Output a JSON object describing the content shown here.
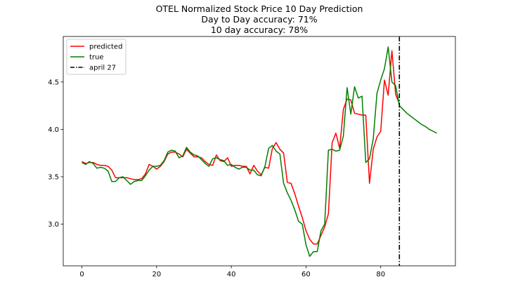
{
  "chart_data": {
    "type": "line",
    "title": "OTEL Normalized Stock Price 10 Day Prediction",
    "subtitle_lines": [
      "Day to Day accuracy: 71%",
      "10 day accuracy: 78%"
    ],
    "xlabel": "",
    "ylabel": "",
    "xlim": [
      -5,
      100
    ],
    "ylim": [
      2.56,
      4.98
    ],
    "xticks": [
      0,
      20,
      40,
      60,
      80
    ],
    "yticks": [
      3.0,
      3.5,
      4.0,
      4.5
    ],
    "ytick_labels": [
      "3.0",
      "3.5",
      "4.0",
      "4.5"
    ],
    "grid": false,
    "legend_position": "top-left",
    "series": [
      {
        "name": "predicted",
        "color": "#ff0000",
        "x": [
          0,
          1,
          2,
          3,
          4,
          5,
          6,
          7,
          8,
          9,
          10,
          11,
          12,
          13,
          14,
          15,
          16,
          17,
          18,
          19,
          20,
          21,
          22,
          23,
          24,
          25,
          26,
          27,
          28,
          29,
          30,
          31,
          32,
          33,
          34,
          35,
          36,
          37,
          38,
          39,
          40,
          41,
          42,
          43,
          44,
          45,
          46,
          47,
          48,
          49,
          50,
          51,
          52,
          53,
          54,
          55,
          56,
          57,
          58,
          59,
          60,
          61,
          62,
          63,
          64,
          65,
          66,
          67,
          68,
          69,
          70,
          71,
          72,
          73,
          74,
          75,
          76,
          77,
          78,
          79,
          80,
          81,
          82,
          83,
          84,
          85
        ],
        "values": [
          3.66,
          3.64,
          3.65,
          3.65,
          3.63,
          3.62,
          3.62,
          3.61,
          3.57,
          3.49,
          3.49,
          3.49,
          3.49,
          3.48,
          3.47,
          3.47,
          3.48,
          3.53,
          3.63,
          3.61,
          3.58,
          3.61,
          3.66,
          3.74,
          3.76,
          3.76,
          3.74,
          3.71,
          3.79,
          3.75,
          3.71,
          3.71,
          3.7,
          3.66,
          3.63,
          3.62,
          3.73,
          3.67,
          3.66,
          3.7,
          3.61,
          3.62,
          3.62,
          3.61,
          3.61,
          3.53,
          3.62,
          3.56,
          3.52,
          3.6,
          3.59,
          3.8,
          3.86,
          3.79,
          3.75,
          3.44,
          3.43,
          3.32,
          3.19,
          3.07,
          2.93,
          2.84,
          2.79,
          2.79,
          2.88,
          2.97,
          3.11,
          3.86,
          3.96,
          3.8,
          4.21,
          4.32,
          4.31,
          4.17,
          4.16,
          4.15,
          4.15,
          3.43,
          3.79,
          3.92,
          3.98,
          4.52,
          4.36,
          4.83,
          4.37,
          4.27
        ]
      },
      {
        "name": "true",
        "color": "#008000",
        "x": [
          0,
          1,
          2,
          3,
          4,
          5,
          6,
          7,
          8,
          9,
          10,
          11,
          12,
          13,
          14,
          15,
          16,
          17,
          18,
          19,
          20,
          21,
          22,
          23,
          24,
          25,
          26,
          27,
          28,
          29,
          30,
          31,
          32,
          33,
          34,
          35,
          36,
          37,
          38,
          39,
          40,
          41,
          42,
          43,
          44,
          45,
          46,
          47,
          48,
          49,
          50,
          51,
          52,
          53,
          54,
          55,
          56,
          57,
          58,
          59,
          60,
          61,
          62,
          63,
          64,
          65,
          66,
          67,
          68,
          69,
          70,
          71,
          72,
          73,
          74,
          75,
          76,
          77,
          78,
          79,
          80,
          81,
          82,
          83,
          84,
          85,
          86,
          87,
          88,
          89,
          90,
          91,
          92,
          93,
          94,
          95
        ],
        "values": [
          3.65,
          3.63,
          3.66,
          3.64,
          3.59,
          3.6,
          3.59,
          3.56,
          3.45,
          3.45,
          3.49,
          3.5,
          3.46,
          3.42,
          3.45,
          3.46,
          3.46,
          3.51,
          3.57,
          3.61,
          3.61,
          3.62,
          3.67,
          3.76,
          3.78,
          3.77,
          3.7,
          3.72,
          3.81,
          3.76,
          3.73,
          3.72,
          3.68,
          3.64,
          3.61,
          3.69,
          3.7,
          3.68,
          3.67,
          3.62,
          3.63,
          3.6,
          3.58,
          3.6,
          3.6,
          3.57,
          3.57,
          3.52,
          3.51,
          3.61,
          3.8,
          3.83,
          3.77,
          3.74,
          3.43,
          3.33,
          3.25,
          3.15,
          3.03,
          3.0,
          2.78,
          2.66,
          2.71,
          2.71,
          2.93,
          3.0,
          3.78,
          3.79,
          3.77,
          3.78,
          3.93,
          4.44,
          4.16,
          4.45,
          4.33,
          4.35,
          3.65,
          3.69,
          3.9,
          4.38,
          4.52,
          4.64,
          4.87,
          4.5,
          4.46,
          4.25,
          4.21,
          4.17,
          4.14,
          4.11,
          4.08,
          4.05,
          4.03,
          4.0,
          3.98,
          3.96
        ]
      }
    ],
    "vline": {
      "name": "april 27",
      "x": 85,
      "color": "#000000",
      "style": "dashdot"
    }
  }
}
